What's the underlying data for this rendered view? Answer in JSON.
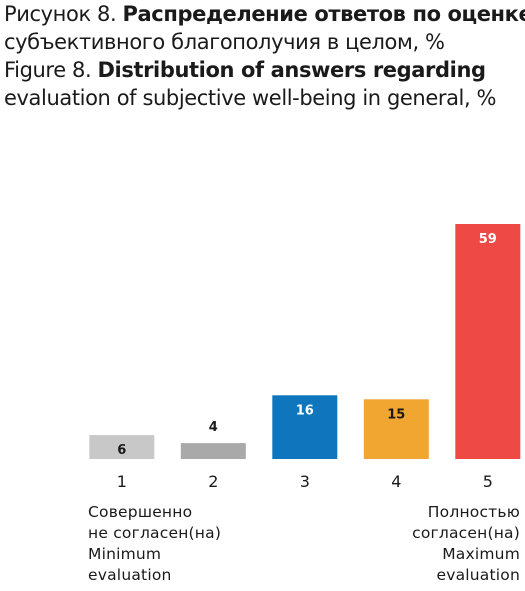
{
  "header": {
    "ru_prefix": "Рисунок 8.",
    "ru_title_line1": "Распределение ответов по оценке",
    "ru_title_line2": "субъективного благополучия в целом, %",
    "en_prefix": "Figure 8.",
    "en_title_line1": "Distribution of answers regarding",
    "en_title_line2": "evaluation of subjective well-being in general, %"
  },
  "notes": {
    "left": [
      "Совершенно",
      "не согласен(на)",
      "Minimum",
      "evaluation"
    ],
    "right": [
      "Полностью",
      "согласен(на)",
      "Maximum",
      "evaluation"
    ]
  },
  "colors": {
    "bar_1": "#c8c8c8",
    "bar_2": "#a9a9a9",
    "bar_3": "#0f76bd",
    "bar_4": "#f0a630",
    "bar_5": "#ee4944"
  },
  "chart_data": {
    "type": "bar",
    "categories": [
      "1",
      "2",
      "3",
      "4",
      "5"
    ],
    "values": [
      6,
      4,
      16,
      15,
      59
    ],
    "bar_colors": [
      "#c8c8c8",
      "#a9a9a9",
      "#0f76bd",
      "#f0a630",
      "#ee4944"
    ],
    "label_colors": [
      "#1a1a1a",
      "#1a1a1a",
      "#ffffff",
      "#1a1a1a",
      "#ffffff"
    ],
    "label_inside": [
      true,
      false,
      true,
      true,
      true
    ],
    "title": "",
    "xlabel": "",
    "ylabel": "",
    "ylim": [
      0,
      59
    ],
    "grid": false,
    "legend": "none"
  }
}
